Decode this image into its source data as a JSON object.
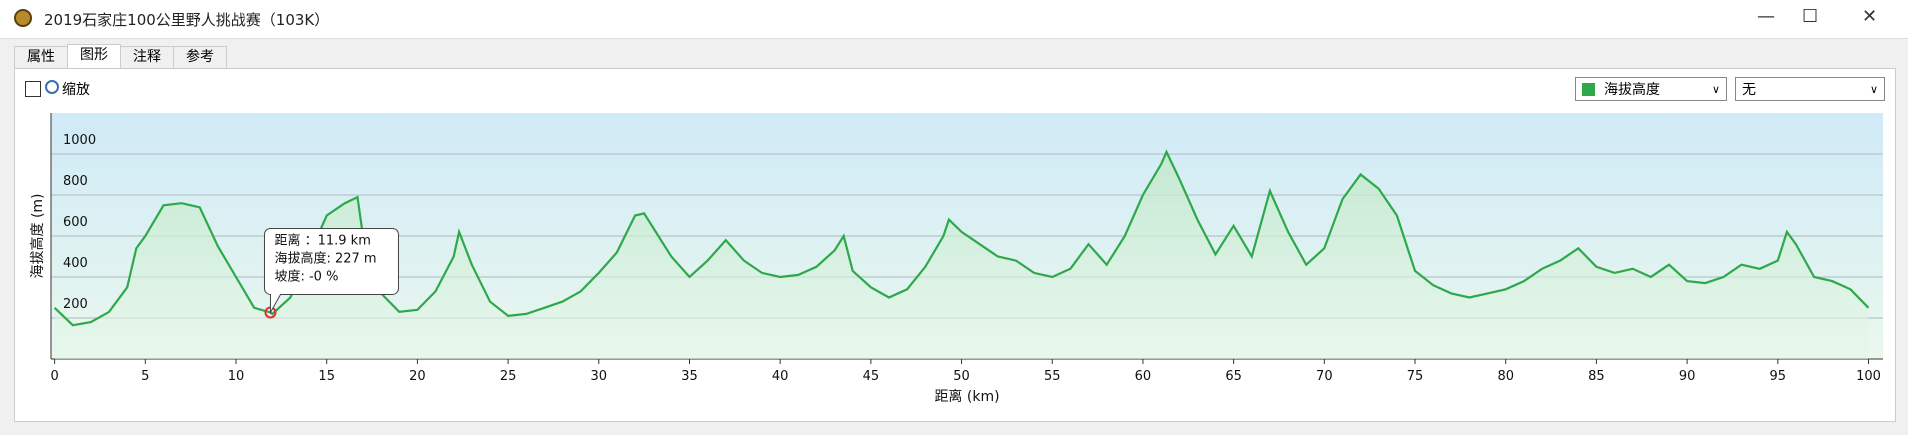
{
  "window": {
    "title": "2019石家庄100公里野人挑战赛（103K）"
  },
  "tabs": [
    "属性",
    "图形",
    "注释",
    "参考"
  ],
  "toolbar": {
    "zoom": "缩放",
    "series_select": "海拔高度",
    "second_select": "无"
  },
  "tooltip": {
    "lines": [
      "距离 ：11.9 km",
      "海拔高度: 227 m",
      "坡度: -0 %"
    ]
  },
  "chart_data": {
    "type": "line",
    "xlabel": "距离 (km)",
    "ylabel": "海拔高度 (m)",
    "xlim": [
      -0.2,
      100.8
    ],
    "ylim": [
      0,
      1200
    ],
    "xticks": [
      0,
      5,
      10,
      15,
      20,
      25,
      30,
      35,
      40,
      45,
      50,
      55,
      60,
      65,
      70,
      75,
      80,
      85,
      90,
      95,
      100
    ],
    "yticks": [
      200,
      400,
      600,
      800,
      1000
    ],
    "grid": true,
    "highlight_index": 13,
    "x": [
      0,
      1,
      2,
      3,
      4,
      4.5,
      5,
      6,
      7,
      8,
      9,
      10,
      11,
      11.9,
      12,
      13,
      14,
      15,
      16,
      16.7,
      17,
      18,
      19,
      20,
      21,
      22,
      22.3,
      23,
      24,
      25,
      26,
      27,
      28,
      29,
      30,
      31,
      32,
      32.5,
      33,
      34,
      35,
      36,
      37,
      38,
      39,
      40,
      41,
      42,
      43,
      43.5,
      44,
      45,
      46,
      47,
      48,
      49,
      49.3,
      50,
      51,
      52,
      53,
      54,
      55,
      56,
      57,
      58,
      59,
      60,
      61,
      61.3,
      62,
      63,
      64,
      65,
      66,
      67,
      68,
      69,
      70,
      71,
      72,
      73,
      74,
      75,
      76,
      77,
      78,
      79,
      80,
      81,
      82,
      83,
      84,
      85,
      86,
      87,
      88,
      89,
      90,
      91,
      92,
      93,
      94,
      95,
      95.5,
      96,
      97,
      98,
      99,
      100
    ],
    "series": [
      {
        "name": "海拔高度",
        "color": "#2ea84a",
        "values": [
          250,
          165,
          180,
          230,
          350,
          540,
          600,
          750,
          760,
          740,
          550,
          400,
          250,
          227,
          220,
          300,
          500,
          700,
          760,
          790,
          600,
          320,
          230,
          240,
          330,
          500,
          620,
          460,
          280,
          210,
          220,
          250,
          280,
          330,
          420,
          520,
          700,
          710,
          640,
          500,
          400,
          480,
          580,
          480,
          420,
          400,
          410,
          450,
          530,
          600,
          430,
          350,
          300,
          340,
          450,
          600,
          680,
          620,
          560,
          500,
          480,
          420,
          400,
          440,
          560,
          460,
          600,
          800,
          950,
          1010,
          880,
          680,
          510,
          650,
          500,
          820,
          620,
          460,
          540,
          780,
          900,
          830,
          700,
          430,
          360,
          320,
          300,
          320,
          340,
          380,
          440,
          480,
          540,
          450,
          420,
          440,
          400,
          460,
          380,
          370,
          400,
          460,
          440,
          480,
          620,
          560,
          400,
          380,
          340,
          250
        ]
      }
    ]
  }
}
